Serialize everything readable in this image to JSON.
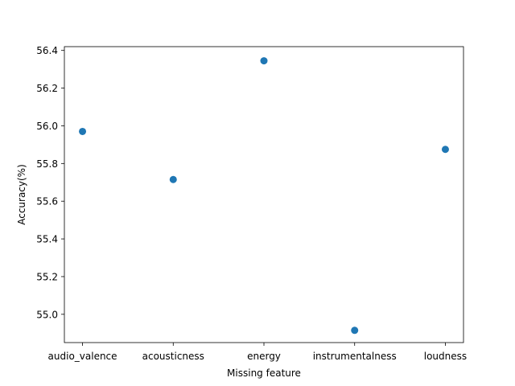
{
  "chart_data": {
    "type": "scatter",
    "title": "",
    "xlabel": "Missing feature",
    "ylabel": "Accuracy(%)",
    "categories": [
      "audio_valence",
      "acousticness",
      "energy",
      "instrumentalness",
      "loudness"
    ],
    "values": [
      55.97,
      55.715,
      56.345,
      54.915,
      55.875
    ],
    "ylim": [
      54.85,
      56.42
    ],
    "yticks": [
      55.0,
      55.2,
      55.4,
      55.6,
      55.8,
      56.0,
      56.2,
      56.4
    ],
    "ytick_labels": [
      "55.0",
      "55.2",
      "55.4",
      "55.6",
      "55.8",
      "56.0",
      "56.2",
      "56.4"
    ],
    "grid": false,
    "marker_color": "#1f77b4"
  }
}
